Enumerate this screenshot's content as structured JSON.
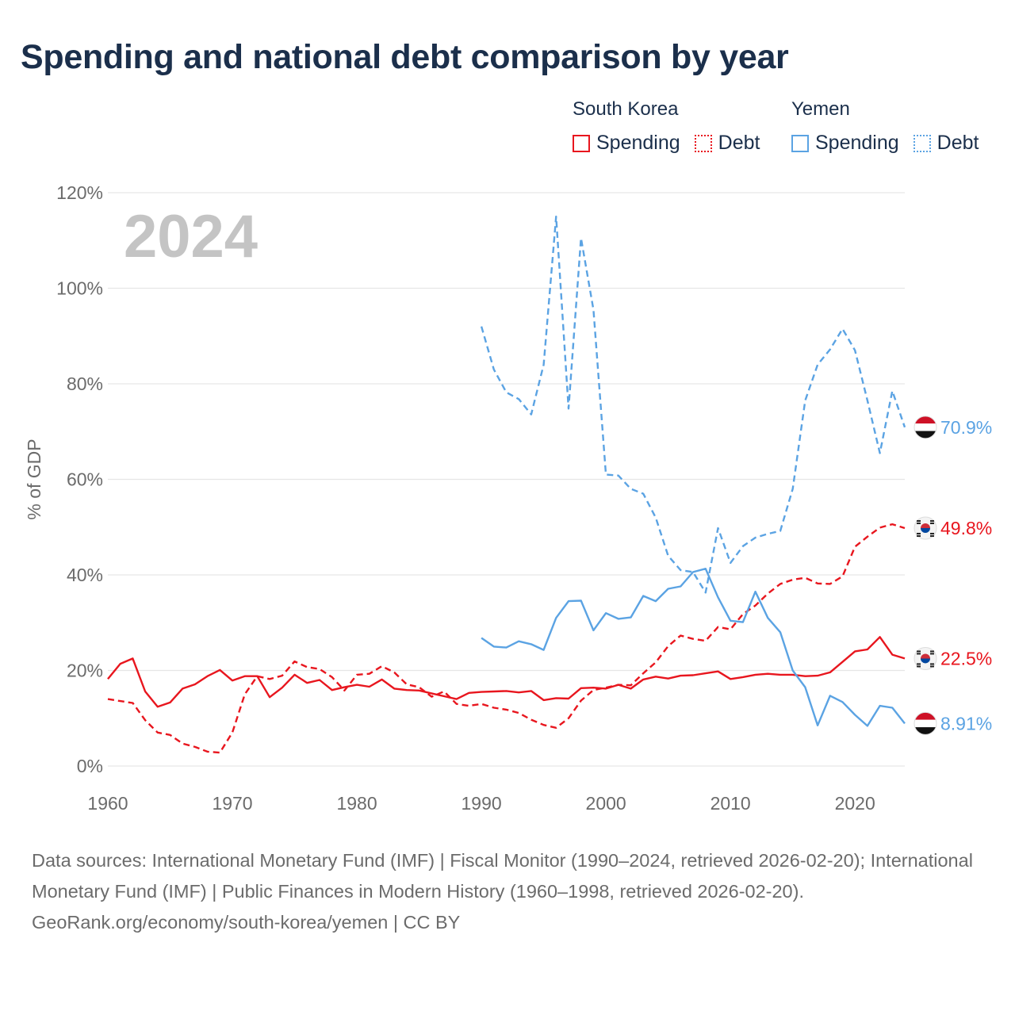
{
  "title": "Spending and national debt comparison by year",
  "legend": {
    "groups": [
      {
        "name": "South Korea",
        "items": [
          {
            "label": "Spending"
          },
          {
            "label": "Debt"
          }
        ]
      },
      {
        "name": "Yemen",
        "items": [
          {
            "label": "Spending"
          },
          {
            "label": "Debt"
          }
        ]
      }
    ]
  },
  "footer": {
    "sources": "Data sources: International Monetary Fund (IMF) | Fiscal Monitor (1990–2024, retrieved 2026-02-20); International Monetary Fund (IMF) | Public Finances in Modern History (1960–1998, retrieved 2026-02-20).",
    "credit": "GeoRank.org/economy/south-korea/yemen | CC BY"
  },
  "colors": {
    "south_korea": "#e8161e",
    "yemen": "#5ba3e3",
    "title": "#1b2f4b",
    "axis_text": "#6b6b6b",
    "grid": "#e6e6e6",
    "watermark": "#c4c4c4"
  },
  "chart_data": {
    "type": "line",
    "title": "Spending and national debt comparison by year",
    "ylabel": "% of GDP",
    "xlabel": "",
    "year_watermark": "2024",
    "xlim": [
      1960,
      2024
    ],
    "ylim": [
      0,
      120
    ],
    "x_ticks": [
      1960,
      1970,
      1980,
      1990,
      2000,
      2010,
      2020
    ],
    "x_tick_labels": [
      "1960",
      "1970",
      "1980",
      "1990",
      "2000",
      "2010",
      "2020"
    ],
    "y_ticks": [
      0,
      20,
      40,
      60,
      80,
      100,
      120
    ],
    "y_tick_labels": [
      "0%",
      "20%",
      "40%",
      "60%",
      "80%",
      "100%",
      "120%"
    ],
    "series": [
      {
        "name": "South Korea Spending",
        "country": "South Korea",
        "metric": "Spending",
        "style": "solid",
        "color_key": "south_korea",
        "end_label": "22.5%",
        "flag": "south-korea",
        "x": [
          1960,
          1961,
          1962,
          1963,
          1964,
          1965,
          1966,
          1967,
          1968,
          1969,
          1970,
          1971,
          1972,
          1973,
          1974,
          1975,
          1976,
          1977,
          1978,
          1979,
          1980,
          1981,
          1982,
          1983,
          1984,
          1985,
          1986,
          1987,
          1988,
          1989,
          1990,
          1991,
          1992,
          1993,
          1994,
          1995,
          1996,
          1997,
          1998,
          1999,
          2000,
          2001,
          2002,
          2003,
          2004,
          2005,
          2006,
          2007,
          2008,
          2009,
          2010,
          2011,
          2012,
          2013,
          2014,
          2015,
          2016,
          2017,
          2018,
          2019,
          2020,
          2021,
          2022,
          2023,
          2024
        ],
        "values": [
          18.2,
          21.4,
          22.5,
          15.6,
          12.4,
          13.3,
          16.2,
          17.1,
          18.8,
          20.1,
          17.9,
          18.8,
          18.8,
          14.4,
          16.4,
          19.1,
          17.4,
          18.0,
          15.9,
          16.5,
          17.0,
          16.6,
          18.1,
          16.2,
          15.9,
          15.8,
          15.2,
          14.6,
          14.0,
          15.3,
          15.5,
          15.6,
          15.7,
          15.4,
          15.7,
          13.8,
          14.2,
          14.1,
          16.3,
          16.4,
          16.2,
          17.0,
          16.2,
          18.1,
          18.7,
          18.3,
          18.9,
          19.0,
          19.4,
          19.8,
          18.2,
          18.6,
          19.1,
          19.3,
          19.1,
          19.1,
          18.8,
          18.9,
          19.6,
          21.8,
          24.0,
          24.4,
          27.0,
          23.3,
          22.5
        ]
      },
      {
        "name": "South Korea Debt",
        "country": "South Korea",
        "metric": "Debt",
        "style": "dashed",
        "color_key": "south_korea",
        "end_label": "49.8%",
        "flag": "south-korea",
        "x": [
          1960,
          1961,
          1962,
          1963,
          1964,
          1965,
          1966,
          1967,
          1968,
          1969,
          1970,
          1971,
          1972,
          1973,
          1974,
          1975,
          1976,
          1977,
          1978,
          1979,
          1980,
          1981,
          1982,
          1983,
          1984,
          1985,
          1986,
          1987,
          1988,
          1989,
          1990,
          1991,
          1992,
          1993,
          1994,
          1995,
          1996,
          1997,
          1998,
          1999,
          2000,
          2001,
          2002,
          2003,
          2004,
          2005,
          2006,
          2007,
          2008,
          2009,
          2010,
          2011,
          2012,
          2013,
          2014,
          2015,
          2016,
          2017,
          2018,
          2019,
          2020,
          2021,
          2022,
          2023,
          2024
        ],
        "values": [
          14.0,
          13.6,
          13.2,
          9.6,
          7.0,
          6.5,
          4.7,
          4.0,
          3.0,
          2.8,
          7.0,
          15.0,
          18.8,
          18.2,
          18.9,
          21.9,
          20.7,
          20.3,
          18.6,
          15.8,
          19.1,
          19.3,
          20.9,
          19.6,
          17.1,
          16.5,
          14.5,
          15.6,
          13.0,
          12.6,
          13.0,
          12.2,
          11.8,
          11.1,
          9.7,
          8.6,
          8.0,
          10.0,
          13.7,
          15.9,
          16.4,
          17.0,
          16.9,
          19.4,
          21.7,
          25.1,
          27.3,
          26.6,
          26.2,
          29.1,
          28.6,
          31.8,
          33.6,
          36.1,
          38.1,
          39.0,
          39.4,
          38.2,
          38.1,
          39.7,
          45.9,
          48.0,
          49.9,
          50.6,
          49.8
        ]
      },
      {
        "name": "Yemen Spending",
        "country": "Yemen",
        "metric": "Spending",
        "style": "solid",
        "color_key": "yemen",
        "end_label": "8.91%",
        "flag": "yemen",
        "x": [
          1990,
          1991,
          1992,
          1993,
          1994,
          1995,
          1996,
          1997,
          1998,
          1999,
          2000,
          2001,
          2002,
          2003,
          2004,
          2005,
          2006,
          2007,
          2008,
          2009,
          2010,
          2011,
          2012,
          2013,
          2014,
          2015,
          2016,
          2017,
          2018,
          2019,
          2020,
          2021,
          2022,
          2023,
          2024
        ],
        "values": [
          26.8,
          25.0,
          24.8,
          26.1,
          25.5,
          24.3,
          31.0,
          34.5,
          34.6,
          28.4,
          32.0,
          30.8,
          31.1,
          35.6,
          34.5,
          37.1,
          37.6,
          40.6,
          41.3,
          35.3,
          30.4,
          30.1,
          36.5,
          31.0,
          28.0,
          20.0,
          16.5,
          8.5,
          14.7,
          13.4,
          10.7,
          8.4,
          12.6,
          12.2,
          8.9
        ]
      },
      {
        "name": "Yemen Debt",
        "country": "Yemen",
        "metric": "Debt",
        "style": "dashed",
        "color_key": "yemen",
        "end_label": "70.9%",
        "flag": "yemen",
        "x": [
          1990,
          1991,
          1992,
          1993,
          1994,
          1995,
          1996,
          1997,
          1998,
          1999,
          2000,
          2001,
          2002,
          2003,
          2004,
          2005,
          2006,
          2007,
          2008,
          2009,
          2010,
          2011,
          2012,
          2013,
          2014,
          2015,
          2016,
          2017,
          2018,
          2019,
          2020,
          2021,
          2022,
          2023,
          2024
        ],
        "values": [
          92.0,
          83.0,
          78.2,
          76.8,
          73.6,
          84.0,
          115.0,
          74.8,
          110.5,
          95.5,
          61.0,
          60.8,
          58.0,
          57.0,
          52.0,
          44.0,
          41.0,
          40.6,
          36.3,
          49.8,
          42.5,
          46.0,
          47.8,
          48.6,
          49.2,
          58.0,
          76.5,
          84.0,
          87.2,
          91.5,
          87.0,
          76.5,
          65.5,
          78.5,
          70.9
        ]
      }
    ]
  }
}
